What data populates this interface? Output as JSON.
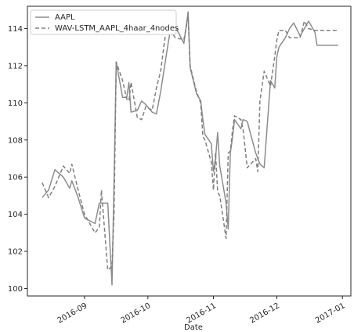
{
  "chart_data": {
    "type": "line",
    "title": "",
    "xlabel": "Date",
    "ylabel": "",
    "ylim": [
      99.6,
      115.2
    ],
    "xlim": [
      "2016-08-05",
      "2017-01-05"
    ],
    "grid": false,
    "legend_position": "top-left",
    "x_ticks": [
      {
        "date": "2016-09-01",
        "label": "2016-09"
      },
      {
        "date": "2016-10-01",
        "label": "2016-10"
      },
      {
        "date": "2016-11-01",
        "label": "2016-11"
      },
      {
        "date": "2016-12-01",
        "label": "2016-12"
      },
      {
        "date": "2017-01-01",
        "label": "2017-01"
      }
    ],
    "y_ticks": [
      100,
      102,
      104,
      106,
      108,
      110,
      112,
      114
    ],
    "x": [
      "2016-08-12",
      "2016-08-15",
      "2016-08-18",
      "2016-08-22",
      "2016-08-25",
      "2016-08-26",
      "2016-08-29",
      "2016-09-01",
      "2016-09-06",
      "2016-09-08",
      "2016-09-09",
      "2016-09-12",
      "2016-09-14",
      "2016-09-15",
      "2016-09-16",
      "2016-09-19",
      "2016-09-21",
      "2016-09-22",
      "2016-09-23",
      "2016-09-26",
      "2016-09-28",
      "2016-09-30",
      "2016-10-03",
      "2016-10-05",
      "2016-10-07",
      "2016-10-10",
      "2016-10-12",
      "2016-10-14",
      "2016-10-18",
      "2016-10-20",
      "2016-10-21",
      "2016-10-24",
      "2016-10-25",
      "2016-10-26",
      "2016-10-27",
      "2016-10-28",
      "2016-10-31",
      "2016-11-01",
      "2016-11-02",
      "2016-11-03",
      "2016-11-04",
      "2016-11-07",
      "2016-11-08",
      "2016-11-09",
      "2016-11-10",
      "2016-11-11",
      "2016-11-14",
      "2016-11-15",
      "2016-11-17",
      "2016-11-21",
      "2016-11-22",
      "2016-11-23",
      "2016-11-25",
      "2016-11-28",
      "2016-11-30",
      "2016-12-01",
      "2016-12-02",
      "2016-12-05",
      "2016-12-07",
      "2016-12-09",
      "2016-12-12",
      "2016-12-14",
      "2016-12-16",
      "2016-12-19",
      "2016-12-20",
      "2016-12-21",
      "2016-12-22",
      "2016-12-23",
      "2016-12-27",
      "2016-12-29",
      "2016-12-30"
    ],
    "series": [
      {
        "name": "AAPL",
        "style": "solid",
        "color": "#8c8c8c",
        "values": [
          104.9,
          105.3,
          106.4,
          106.0,
          105.4,
          105.8,
          104.9,
          103.8,
          103.5,
          104.6,
          104.6,
          104.6,
          100.2,
          105.9,
          112.2,
          110.3,
          110.3,
          111.1,
          109.5,
          109.6,
          110.1,
          109.9,
          109.5,
          109.4,
          110.6,
          112.8,
          114.2,
          114.1,
          113.2,
          114.9,
          111.9,
          110.5,
          110.3,
          110.1,
          109.1,
          108.3,
          107.8,
          106.3,
          107.0,
          108.4,
          106.6,
          104.6,
          103.2,
          107.3,
          108.1,
          109.1,
          108.6,
          109.1,
          109.0,
          107.3,
          107.0,
          106.7,
          106.5,
          111.2,
          110.8,
          112.5,
          113.0,
          113.5,
          114.0,
          114.3,
          113.6,
          114.0,
          114.4,
          113.8,
          113.1,
          113.1,
          113.1,
          113.1,
          113.1,
          113.1,
          113.1
        ]
      },
      {
        "name": "WAV-LSTM_AAPL_4haar_4nodes",
        "style": "dashed",
        "color": "#7f7f7f",
        "values": [
          105.7,
          104.9,
          105.5,
          106.6,
          106.2,
          106.7,
          105.3,
          104.0,
          103.0,
          103.3,
          105.3,
          101.0,
          101.2,
          104.2,
          112.2,
          111.2,
          110.2,
          110.1,
          111.1,
          109.2,
          109.1,
          109.8,
          109.6,
          110.8,
          111.7,
          114.3,
          113.8,
          113.5,
          113.4,
          114.6,
          112.0,
          110.6,
          110.3,
          110.0,
          108.2,
          108.0,
          106.8,
          105.3,
          107.3,
          105.2,
          105.0,
          102.7,
          107.3,
          107.4,
          108.5,
          109.3,
          109.1,
          108.6,
          106.5,
          107.0,
          106.3,
          110.1,
          111.7,
          110.9,
          112.5,
          113.4,
          113.9,
          113.9,
          113.5,
          113.5,
          113.5,
          114.4,
          114.0,
          113.9,
          113.9,
          113.9,
          113.9,
          113.9,
          113.9,
          113.9,
          113.9
        ]
      }
    ]
  }
}
